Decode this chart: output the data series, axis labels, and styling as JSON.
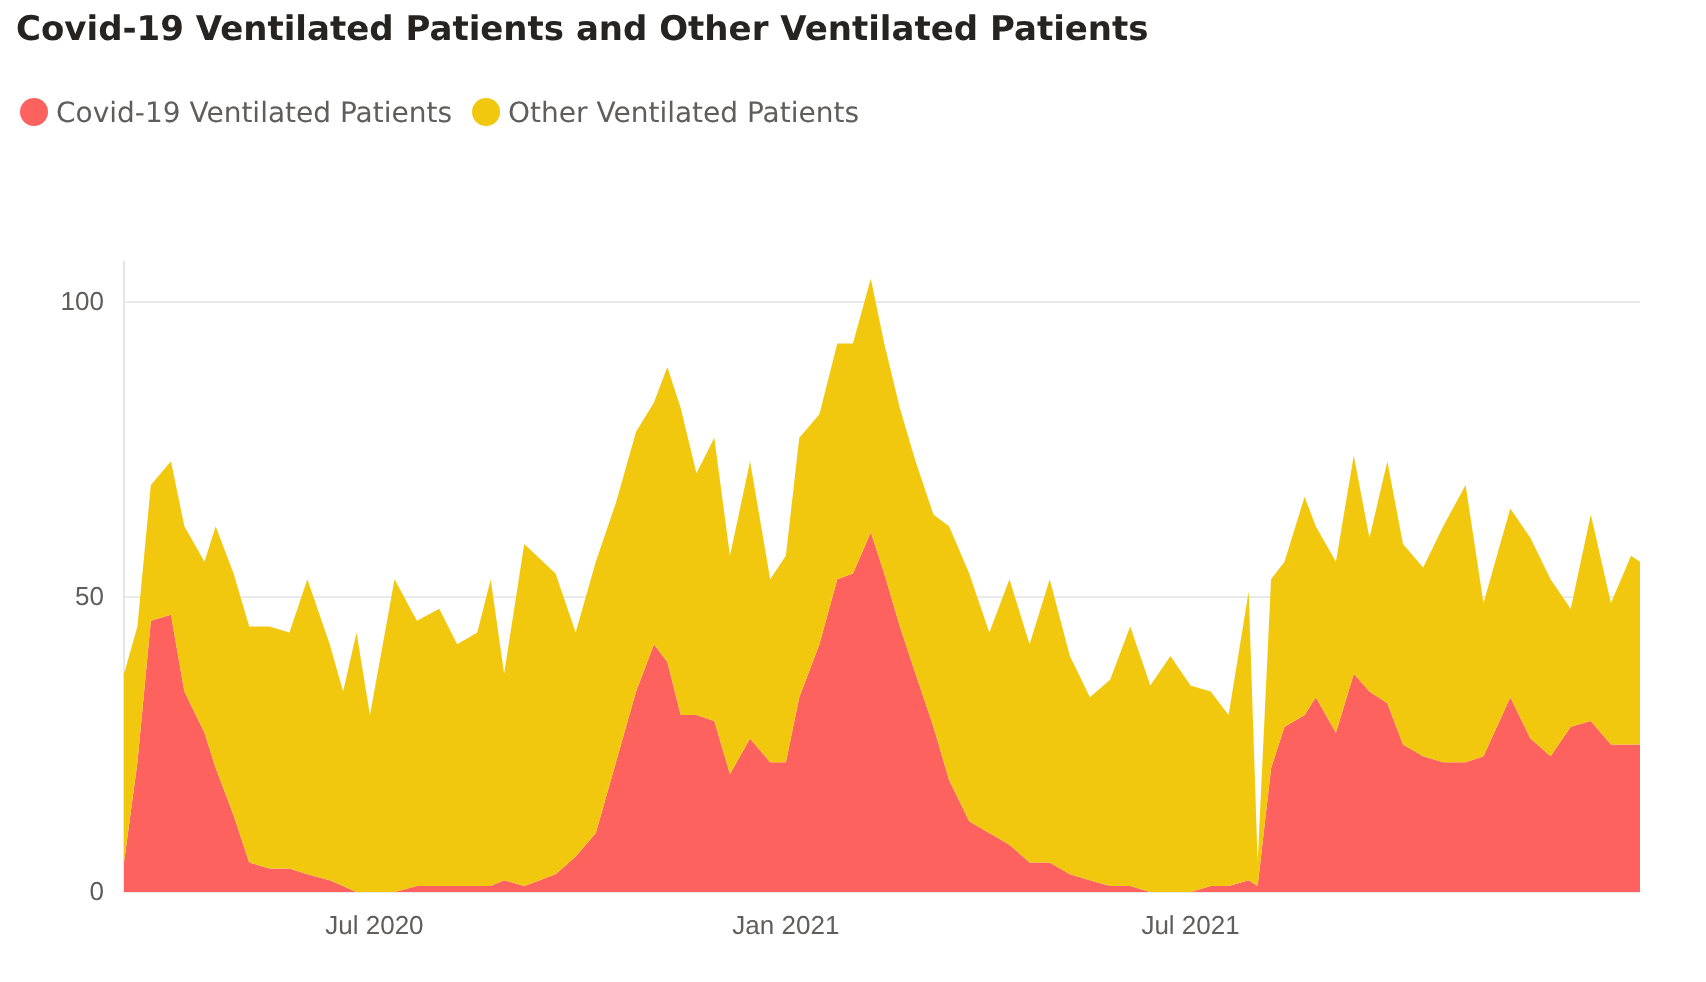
{
  "chart_data": {
    "type": "area",
    "title": "Covid-19 Ventilated Patients and Other Ventilated Patients",
    "stacked": true,
    "grid": "y",
    "legend": "top left",
    "x": [
      "2020-03-11",
      "2020-03-17",
      "2020-03-23",
      "2020-04-01",
      "2020-04-07",
      "2020-04-16",
      "2020-04-21",
      "2020-04-29",
      "2020-05-06",
      "2020-05-15",
      "2020-05-24",
      "2020-06-01",
      "2020-06-11",
      "2020-06-17",
      "2020-06-23",
      "2020-06-29",
      "2020-07-10",
      "2020-07-20",
      "2020-07-30",
      "2020-08-07",
      "2020-08-16",
      "2020-08-22",
      "2020-08-28",
      "2020-09-06",
      "2020-09-20",
      "2020-09-29",
      "2020-10-08",
      "2020-10-17",
      "2020-10-26",
      "2020-11-03",
      "2020-11-09",
      "2020-11-15",
      "2020-11-22",
      "2020-11-30",
      "2020-12-07",
      "2020-12-16",
      "2020-12-25",
      "2021-01-01",
      "2021-01-07",
      "2021-01-16",
      "2021-01-24",
      "2021-01-31",
      "2021-02-08",
      "2021-02-14",
      "2021-02-21",
      "2021-02-28",
      "2021-03-08",
      "2021-03-15",
      "2021-03-24",
      "2021-04-02",
      "2021-04-11",
      "2021-04-20",
      "2021-04-29",
      "2021-05-08",
      "2021-05-17",
      "2021-05-26",
      "2021-06-04",
      "2021-06-13",
      "2021-06-22",
      "2021-07-01",
      "2021-07-10",
      "2021-07-18",
      "2021-07-27",
      "2021-07-31",
      "2021-08-06",
      "2021-08-12",
      "2021-08-21",
      "2021-08-26",
      "2021-09-04",
      "2021-09-12",
      "2021-09-19",
      "2021-09-27",
      "2021-10-04",
      "2021-10-13",
      "2021-10-22",
      "2021-11-01",
      "2021-11-09",
      "2021-11-21",
      "2021-11-30",
      "2021-12-09",
      "2021-12-18",
      "2021-12-27",
      "2022-01-05",
      "2022-01-14",
      "2022-01-18"
    ],
    "series": [
      {
        "name": "Covid-19 Ventilated Patients",
        "color": "#fd625e",
        "values": [
          5,
          22,
          46,
          47,
          34,
          27,
          21,
          13,
          5,
          4,
          4,
          3,
          2,
          1,
          0,
          0,
          0,
          1,
          1,
          1,
          1,
          1,
          2,
          1,
          3,
          6,
          10,
          22,
          34,
          42,
          39,
          30,
          30,
          29,
          20,
          26,
          22,
          22,
          33,
          42,
          53,
          54,
          61,
          54,
          45,
          37,
          28,
          19,
          12,
          10,
          8,
          5,
          5,
          3,
          2,
          1,
          1,
          0,
          0,
          0,
          1,
          1,
          2,
          1,
          21,
          28,
          30,
          33,
          27,
          37,
          34,
          32,
          25,
          23,
          22,
          22,
          23,
          33,
          26,
          23,
          28,
          29,
          25,
          25,
          25
        ]
      },
      {
        "name": "Other Ventilated Patients",
        "color": "#f2c80f",
        "values": [
          32,
          23,
          23,
          26,
          28,
          29,
          41,
          41,
          40,
          41,
          40,
          50,
          40,
          33,
          44,
          30,
          53,
          45,
          47,
          41,
          43,
          52,
          35,
          58,
          51,
          38,
          46,
          44,
          44,
          41,
          50,
          52,
          41,
          48,
          37,
          47,
          31,
          35,
          44,
          39,
          40,
          39,
          43,
          39,
          37,
          36,
          36,
          43,
          42,
          34,
          45,
          37,
          48,
          37,
          31,
          35,
          44,
          35,
          40,
          35,
          33,
          29,
          49,
          4,
          32,
          28,
          37,
          29,
          29,
          37,
          26,
          41,
          34,
          32,
          40,
          47,
          26,
          32,
          34,
          30,
          20,
          35,
          24,
          32,
          31
        ]
      }
    ],
    "xlim": [
      "2020-03-11",
      "2022-01-18"
    ],
    "xticks": [
      {
        "value": "2020-07-01",
        "label": "Jul 2020"
      },
      {
        "value": "2021-01-01",
        "label": "Jan 2021"
      },
      {
        "value": "2021-07-01",
        "label": "Jul 2021"
      }
    ],
    "ylim": [
      0,
      107
    ],
    "yticks": [
      0,
      50,
      100
    ]
  }
}
